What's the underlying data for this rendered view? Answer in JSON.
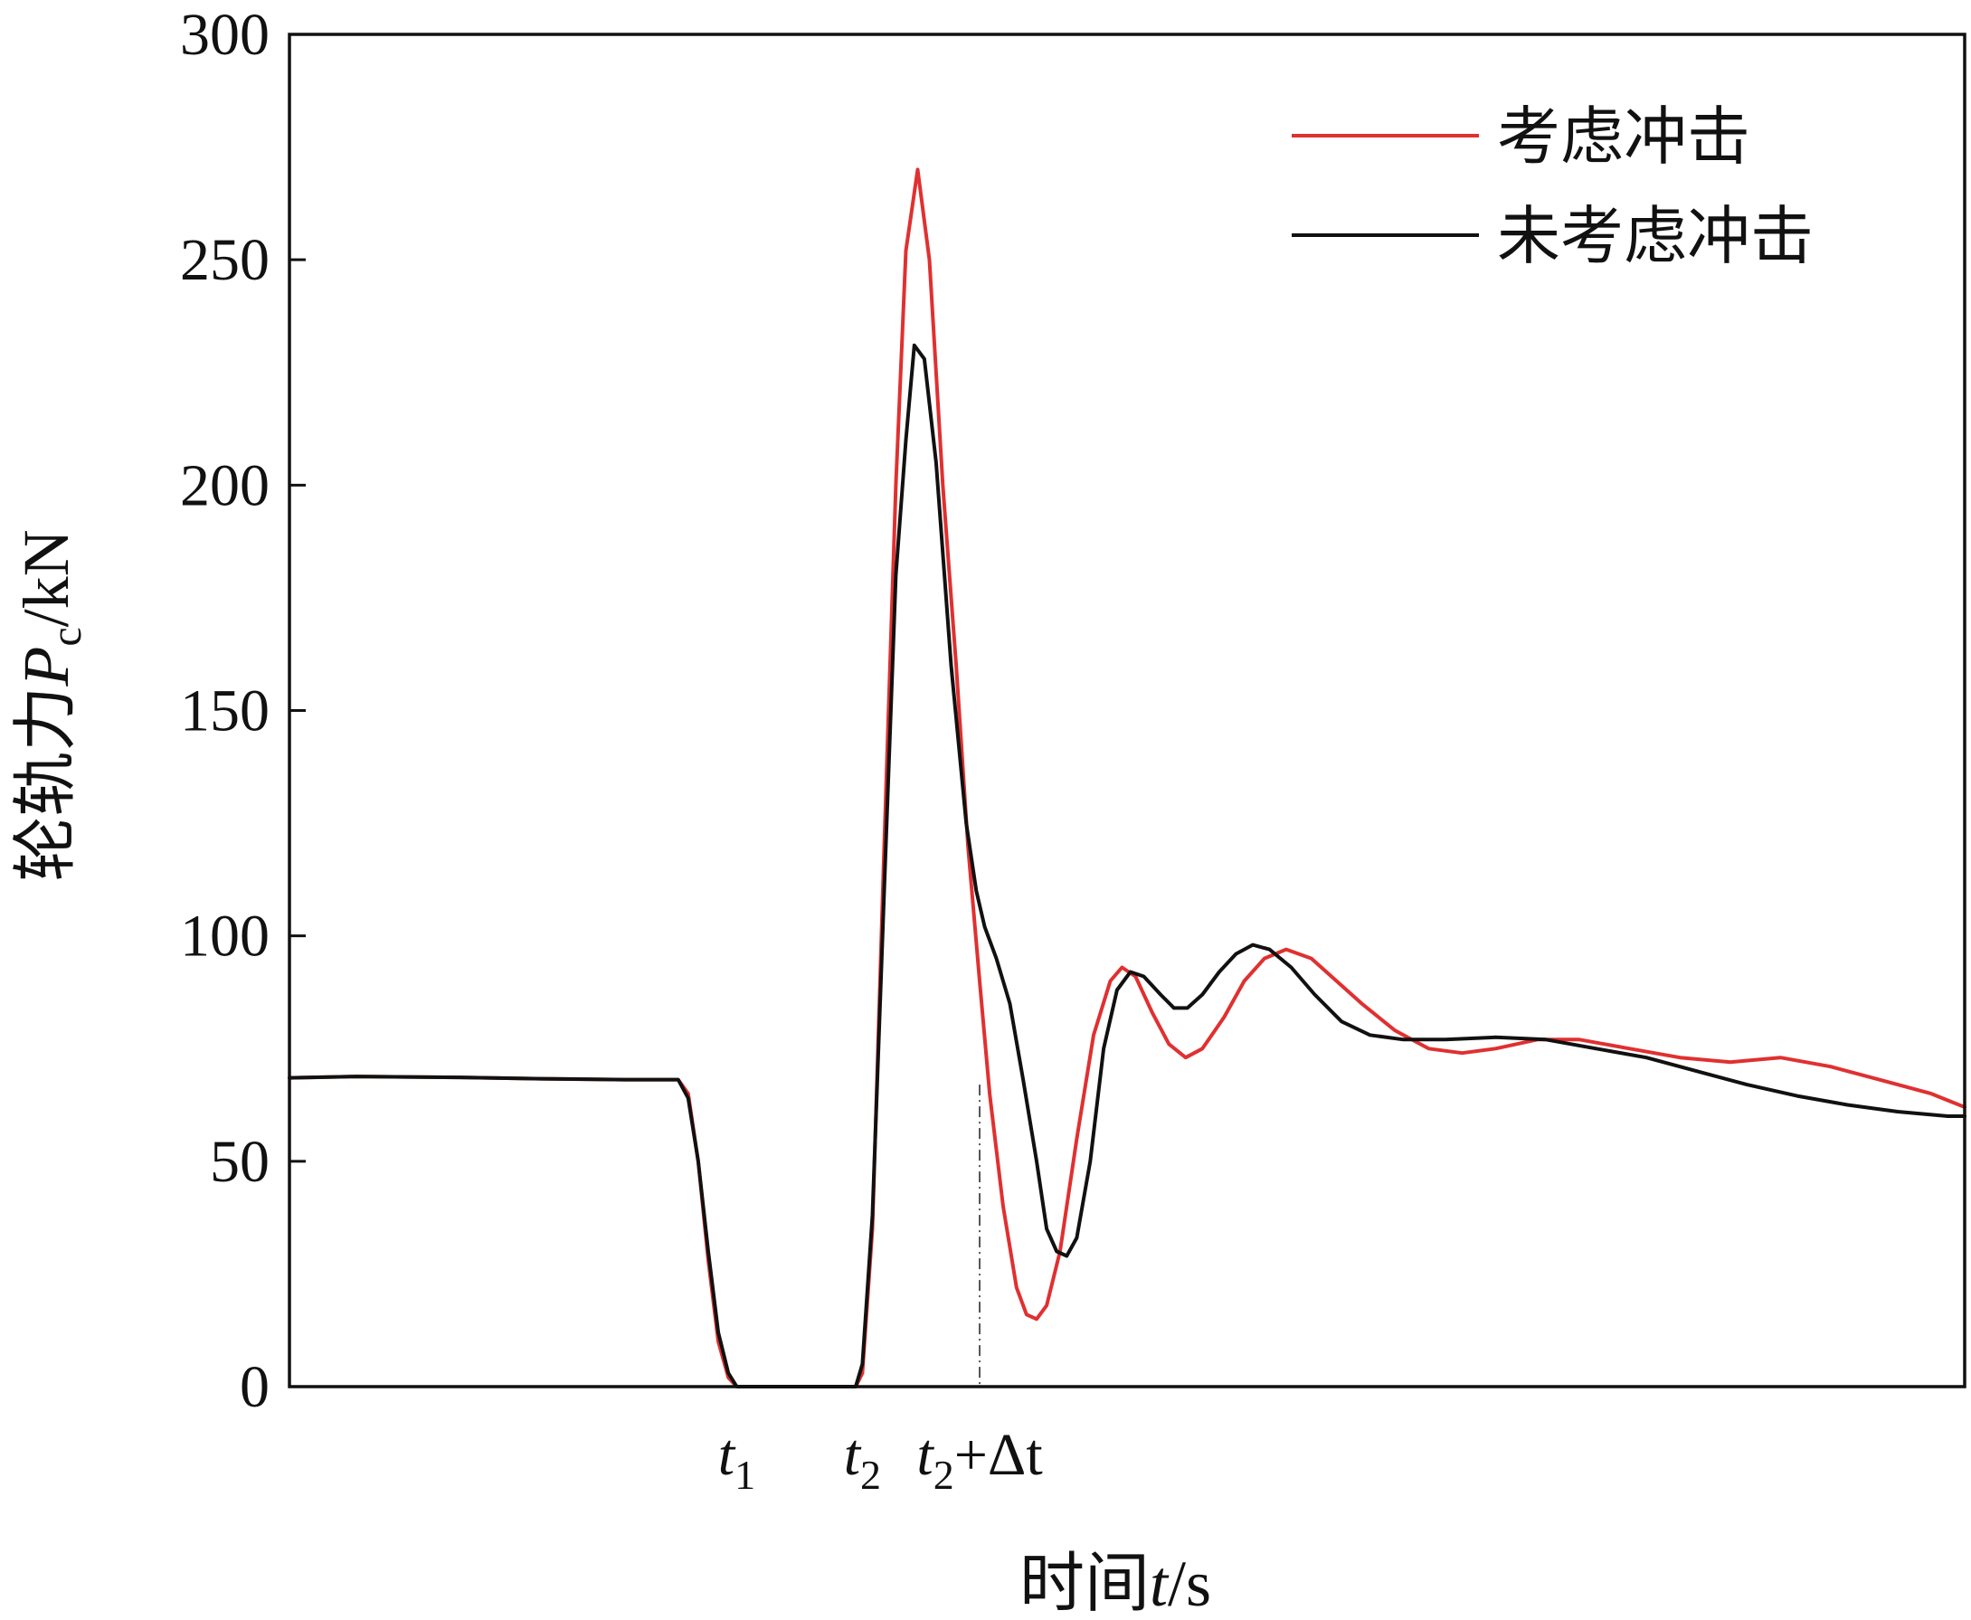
{
  "chart_data": {
    "type": "line",
    "xlabel": {
      "prefix": "时间",
      "var": "t",
      "suffix": "/s"
    },
    "ylabel": {
      "prefix": "轮轨力",
      "var": "P",
      "sub": "c",
      "suffix": "/kN"
    },
    "ylim": [
      0,
      300
    ],
    "yticks": [
      "0",
      "50",
      "100",
      "150",
      "200",
      "250",
      "300"
    ],
    "xlim": [
      0,
      1
    ],
    "xticks_marked": [
      {
        "main": "t",
        "sub": "1",
        "rest": "",
        "x": 0.267
      },
      {
        "main": "t",
        "sub": "2",
        "rest": "",
        "x": 0.342
      },
      {
        "main": "t",
        "sub": "2",
        "rest": "+Δt",
        "x": 0.412
      }
    ],
    "reference_line": {
      "x": 0.412,
      "y_top": 67
    },
    "grid": false,
    "legend_position": "top-right",
    "series": [
      {
        "name": "考虑冲击",
        "color": "#e03030",
        "points": [
          [
            0.0,
            68.5
          ],
          [
            0.04,
            68.8
          ],
          [
            0.1,
            68.6
          ],
          [
            0.15,
            68.3
          ],
          [
            0.2,
            68.1
          ],
          [
            0.232,
            68.1
          ],
          [
            0.238,
            65
          ],
          [
            0.244,
            50
          ],
          [
            0.25,
            28
          ],
          [
            0.256,
            10
          ],
          [
            0.262,
            2
          ],
          [
            0.267,
            0
          ],
          [
            0.3,
            0
          ],
          [
            0.338,
            0
          ],
          [
            0.342,
            3
          ],
          [
            0.348,
            35
          ],
          [
            0.355,
            120
          ],
          [
            0.362,
            200
          ],
          [
            0.368,
            252
          ],
          [
            0.375,
            270
          ],
          [
            0.382,
            250
          ],
          [
            0.39,
            200
          ],
          [
            0.398,
            160
          ],
          [
            0.405,
            120
          ],
          [
            0.412,
            90
          ],
          [
            0.418,
            65
          ],
          [
            0.426,
            40
          ],
          [
            0.434,
            22
          ],
          [
            0.44,
            16
          ],
          [
            0.446,
            15
          ],
          [
            0.452,
            18
          ],
          [
            0.46,
            30
          ],
          [
            0.47,
            55
          ],
          [
            0.48,
            78
          ],
          [
            0.49,
            90
          ],
          [
            0.497,
            93
          ],
          [
            0.505,
            91
          ],
          [
            0.515,
            83
          ],
          [
            0.525,
            76
          ],
          [
            0.535,
            73
          ],
          [
            0.545,
            75
          ],
          [
            0.558,
            82
          ],
          [
            0.57,
            90
          ],
          [
            0.582,
            95
          ],
          [
            0.595,
            97
          ],
          [
            0.61,
            95
          ],
          [
            0.625,
            90
          ],
          [
            0.64,
            85
          ],
          [
            0.66,
            79
          ],
          [
            0.68,
            75
          ],
          [
            0.7,
            74
          ],
          [
            0.72,
            75
          ],
          [
            0.745,
            77
          ],
          [
            0.77,
            77
          ],
          [
            0.8,
            75
          ],
          [
            0.83,
            73
          ],
          [
            0.86,
            72
          ],
          [
            0.89,
            73
          ],
          [
            0.92,
            71
          ],
          [
            0.95,
            68
          ],
          [
            0.98,
            65
          ],
          [
            1.0,
            62
          ]
        ]
      },
      {
        "name": "未考虑冲击",
        "color": "#111111",
        "points": [
          [
            0.0,
            68.5
          ],
          [
            0.04,
            68.8
          ],
          [
            0.1,
            68.6
          ],
          [
            0.15,
            68.3
          ],
          [
            0.2,
            68.1
          ],
          [
            0.232,
            68.1
          ],
          [
            0.238,
            64
          ],
          [
            0.244,
            50
          ],
          [
            0.25,
            30
          ],
          [
            0.256,
            12
          ],
          [
            0.262,
            3
          ],
          [
            0.267,
            0
          ],
          [
            0.3,
            0
          ],
          [
            0.338,
            0
          ],
          [
            0.342,
            5
          ],
          [
            0.348,
            38
          ],
          [
            0.355,
            110
          ],
          [
            0.362,
            180
          ],
          [
            0.368,
            210
          ],
          [
            0.373,
            231
          ],
          [
            0.379,
            228
          ],
          [
            0.386,
            205
          ],
          [
            0.395,
            160
          ],
          [
            0.404,
            125
          ],
          [
            0.41,
            110
          ],
          [
            0.415,
            102
          ],
          [
            0.422,
            95
          ],
          [
            0.43,
            85
          ],
          [
            0.438,
            68
          ],
          [
            0.446,
            50
          ],
          [
            0.452,
            35
          ],
          [
            0.458,
            30
          ],
          [
            0.464,
            29
          ],
          [
            0.47,
            33
          ],
          [
            0.478,
            50
          ],
          [
            0.486,
            75
          ],
          [
            0.494,
            88
          ],
          [
            0.502,
            92
          ],
          [
            0.51,
            91
          ],
          [
            0.52,
            87
          ],
          [
            0.528,
            84
          ],
          [
            0.536,
            84
          ],
          [
            0.545,
            87
          ],
          [
            0.555,
            92
          ],
          [
            0.565,
            96
          ],
          [
            0.575,
            98
          ],
          [
            0.585,
            97
          ],
          [
            0.598,
            93
          ],
          [
            0.612,
            87
          ],
          [
            0.628,
            81
          ],
          [
            0.645,
            78
          ],
          [
            0.665,
            77
          ],
          [
            0.69,
            77
          ],
          [
            0.72,
            77.5
          ],
          [
            0.75,
            77
          ],
          [
            0.78,
            75
          ],
          [
            0.81,
            73
          ],
          [
            0.84,
            70
          ],
          [
            0.87,
            67
          ],
          [
            0.9,
            64.5
          ],
          [
            0.93,
            62.5
          ],
          [
            0.96,
            61
          ],
          [
            0.99,
            60
          ],
          [
            1.0,
            60
          ]
        ]
      }
    ]
  }
}
